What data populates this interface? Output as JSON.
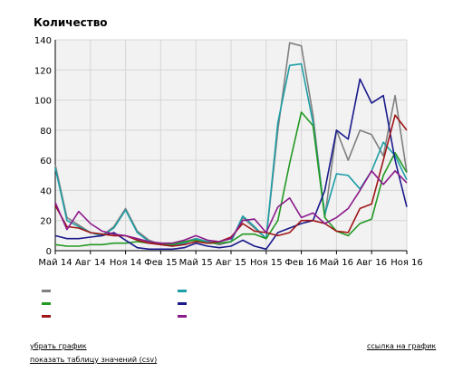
{
  "chart_data": {
    "type": "line",
    "title": "Количество",
    "xlabel": "",
    "ylabel": "",
    "ylim": [
      0,
      140
    ],
    "yticks": [
      0,
      20,
      40,
      60,
      80,
      100,
      120,
      140
    ],
    "grid": true,
    "x_count": 31,
    "x_ticks": [
      {
        "i": 0,
        "label": "Май 14"
      },
      {
        "i": 3,
        "label": "Авг 14"
      },
      {
        "i": 6,
        "label": "Ноя 14"
      },
      {
        "i": 9,
        "label": "Фев 15"
      },
      {
        "i": 12,
        "label": "Май 15"
      },
      {
        "i": 15,
        "label": "Авг 15"
      },
      {
        "i": 18,
        "label": "Ноя 15"
      },
      {
        "i": 21,
        "label": "Фев 16"
      },
      {
        "i": 24,
        "label": "Май 16"
      },
      {
        "i": 27,
        "label": "Авг 16"
      },
      {
        "i": 30,
        "label": "Ноя 16"
      }
    ],
    "series": [
      {
        "color": "#808080",
        "values": [
          57,
          22,
          17,
          12,
          10,
          16,
          28,
          13,
          7,
          4,
          3,
          6,
          8,
          6,
          4,
          6,
          22,
          15,
          8,
          80,
          138,
          136,
          90,
          22,
          80,
          60,
          80,
          77,
          63,
          103,
          52
        ]
      },
      {
        "color": "#1e9ea6",
        "values": [
          55,
          20,
          16,
          12,
          10,
          15,
          27,
          12,
          6,
          5,
          3,
          5,
          8,
          6,
          5,
          6,
          23,
          16,
          8,
          85,
          123,
          124,
          85,
          24,
          51,
          50,
          41,
          53,
          72,
          63,
          47
        ]
      },
      {
        "color": "#229922",
        "values": [
          4,
          3,
          3,
          4,
          4,
          5,
          5,
          6,
          5,
          5,
          4,
          6,
          7,
          5,
          5,
          6,
          11,
          11,
          8,
          20,
          58,
          92,
          83,
          22,
          13,
          10,
          18,
          21,
          50,
          65,
          52
        ]
      },
      {
        "color": "#1a1a8c",
        "values": [
          10,
          8,
          8,
          9,
          10,
          12,
          7,
          2,
          1,
          1,
          1,
          2,
          5,
          3,
          2,
          3,
          7,
          3,
          1,
          12,
          15,
          18,
          20,
          40,
          80,
          74,
          114,
          98,
          103,
          60,
          29
        ]
      },
      {
        "color": "#a01515",
        "values": [
          30,
          16,
          15,
          12,
          11,
          10,
          10,
          7,
          5,
          4,
          3,
          4,
          6,
          5,
          6,
          9,
          18,
          13,
          12,
          10,
          12,
          20,
          20,
          18,
          13,
          12,
          28,
          31,
          60,
          90,
          80
        ]
      },
      {
        "color": "#8b1a8b",
        "values": [
          32,
          14,
          26,
          18,
          13,
          11,
          10,
          8,
          6,
          5,
          5,
          7,
          10,
          7,
          6,
          8,
          20,
          21,
          12,
          29,
          35,
          22,
          25,
          18,
          22,
          28,
          40,
          53,
          44,
          53,
          45
        ]
      }
    ]
  },
  "links": {
    "hide_chart": "убрать график",
    "show_table": "показать таблицу значений (csv)",
    "link_to_chart": "ссылка на график"
  }
}
